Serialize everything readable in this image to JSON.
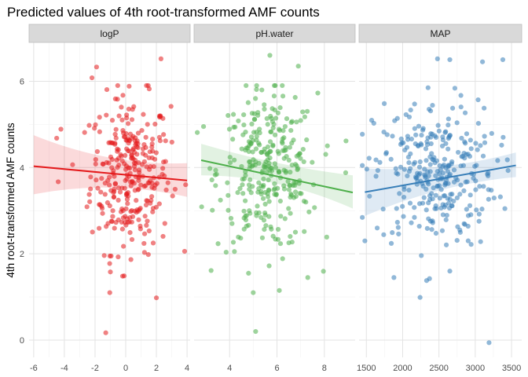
{
  "chart_data": {
    "type": "scatter",
    "title": "Predicted values of 4th root-transformed AMF counts",
    "ylabel": "4th root-transformed AMF counts",
    "ylim": [
      -0.4,
      6.9
    ],
    "yticks": [
      0,
      2,
      4,
      6
    ],
    "grid": true,
    "legend": "none",
    "panels": [
      {
        "name": "logP",
        "color": "#E41A1C",
        "xlim": [
          -6.3,
          4.2
        ],
        "xticks": [
          -6,
          -4,
          -2,
          0,
          2,
          4
        ],
        "fit": {
          "x0": -6.0,
          "y0": 4.03,
          "x1": 4.0,
          "y1": 3.7,
          "ci_left": [
            3.38,
            4.75
          ],
          "ci_mid": [
            3.7,
            4.05
          ],
          "ci_right": [
            3.32,
            4.1
          ]
        },
        "n_points": 300,
        "x_center": 0.3,
        "x_spread": 1.3,
        "y_center": 3.85,
        "y_spread": 0.9,
        "outliers": [
          [
            -1.3,
            0.17
          ],
          [
            2.3,
            6.52
          ],
          [
            -1.9,
            6.33
          ],
          [
            -2.2,
            6.08
          ],
          [
            2.0,
            0.98
          ],
          [
            -4.5,
            4.68
          ],
          [
            -4.4,
            3.67
          ],
          [
            -1.0,
            1.58
          ],
          [
            -1.4,
            1.96
          ]
        ]
      },
      {
        "name": "pH.water",
        "color": "#4DAF4A",
        "xlim": [
          2.5,
          9.3
        ],
        "xticks": [
          4,
          6,
          8
        ],
        "fit": {
          "x0": 2.8,
          "y0": 4.17,
          "x1": 9.2,
          "y1": 3.42,
          "ci_left": [
            3.82,
            4.55
          ],
          "ci_mid": [
            3.8,
            4.05
          ],
          "ci_right": [
            3.05,
            3.82
          ]
        },
        "n_points": 300,
        "x_center": 5.6,
        "x_spread": 1.05,
        "y_center": 3.9,
        "y_spread": 0.9,
        "outliers": [
          [
            5.1,
            0.2
          ],
          [
            6.1,
            1.15
          ],
          [
            5.7,
            6.6
          ],
          [
            6.9,
            6.35
          ],
          [
            4.8,
            1.55
          ],
          [
            7.3,
            1.45
          ],
          [
            8.9,
            3.88
          ],
          [
            2.9,
            4.95
          ]
        ]
      },
      {
        "name": "MAP",
        "color": "#377EB8",
        "xlim": [
          1400,
          3640
        ],
        "xticks": [
          1500,
          2000,
          2500,
          3000,
          3500
        ],
        "fit": {
          "x0": 1480,
          "y0": 3.43,
          "x1": 3560,
          "y1": 4.05,
          "ci_left": [
            2.88,
            3.98
          ],
          "ci_mid": [
            3.6,
            3.9
          ],
          "ci_right": [
            3.78,
            4.35
          ]
        },
        "n_points": 300,
        "x_center": 2450,
        "x_spread": 420,
        "y_center": 3.85,
        "y_spread": 0.85,
        "outliers": [
          [
            2240,
            0.99
          ],
          [
            3190,
            -0.06
          ],
          [
            2330,
            1.38
          ],
          [
            1880,
            1.45
          ],
          [
            2650,
            1.6
          ],
          [
            2650,
            6.5
          ],
          [
            2480,
            6.52
          ],
          [
            2350,
            5.85
          ],
          [
            3100,
            6.45
          ],
          [
            3380,
            6.5
          ],
          [
            1480,
            2.3
          ]
        ]
      }
    ]
  }
}
